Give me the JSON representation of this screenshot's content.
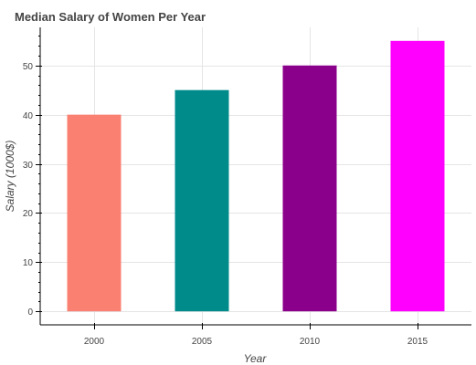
{
  "chart_data": {
    "type": "bar",
    "title": "Median Salary of Women Per Year",
    "xlabel": "Year",
    "ylabel": "Salary (1000$)",
    "categories": [
      "2000",
      "2005",
      "2010",
      "2015"
    ],
    "values": [
      40,
      45,
      50,
      55
    ],
    "colors": [
      "#fa8072",
      "#008b8b",
      "#8b008b",
      "#ff00ff"
    ],
    "ylim": [
      -2.75,
      57.75
    ],
    "yticks": [
      0,
      10,
      20,
      30,
      40,
      50
    ],
    "grid": true,
    "legend": "none"
  }
}
